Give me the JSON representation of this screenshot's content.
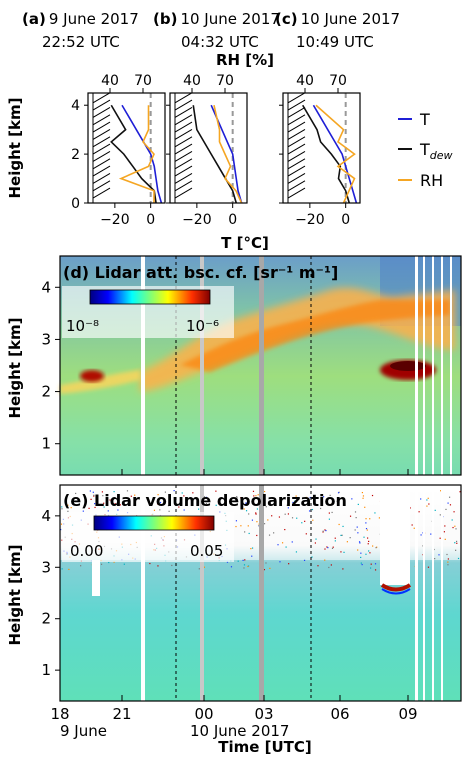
{
  "profiles": {
    "panels": [
      {
        "tag": "(a)",
        "date": "9 June 2017",
        "time": "22:52 UTC"
      },
      {
        "tag": "(b)",
        "date": "10 June 2017",
        "time": "04:32 UTC"
      },
      {
        "tag": "(c)",
        "date": "10 June 2017",
        "time": "10:49 UTC"
      }
    ],
    "ylabel": "Height [km]",
    "xlabel_bottom": "T [°C]",
    "xlabel_top": "RH [%]",
    "bottom_ticks": [
      "−20",
      "0"
    ],
    "top_ticks": [
      "40",
      "70"
    ],
    "y_ticks": [
      "0",
      "2",
      "4"
    ],
    "legend": [
      {
        "label": "T",
        "color": "#1f1fd6"
      },
      {
        "label": "T",
        "sub": "dew",
        "color": "#111111"
      },
      {
        "label": "RH",
        "color": "#f5a623"
      }
    ]
  },
  "lidar": {
    "panel_d_title": "(d) Lidar att. bsc. cf. [sr⁻¹ m⁻¹]",
    "panel_e_title": "(e) Lidar volume depolarization",
    "colorbar_d": {
      "min": "10⁻⁸",
      "max": "10⁻⁶"
    },
    "colorbar_e": {
      "min": "0.00",
      "max": "0.05"
    },
    "ylabel": "Height [km]",
    "y_ticks": [
      "1",
      "2",
      "3",
      "4"
    ],
    "x_ticks": [
      "18",
      "21",
      "00",
      "03",
      "06",
      "09"
    ],
    "date_labels": [
      "9 June",
      "10 June 2017"
    ],
    "xlabel": "Time [UTC]"
  },
  "chart_data": [
    {
      "type": "line",
      "title": "(a) 9 June 2017 22:52 UTC",
      "xlabel": "T [°C]",
      "x2label": "RH [%]",
      "ylabel": "Height [km]",
      "xlim": [
        -35,
        8
      ],
      "ylim": [
        0,
        4.5
      ],
      "series": [
        {
          "name": "T",
          "x": [
            6,
            4,
            3,
            2,
            0,
            -4,
            -8,
            -12,
            -16
          ],
          "y": [
            0,
            0.5,
            1.0,
            1.5,
            2.0,
            2.5,
            3.0,
            3.5,
            4.0
          ]
        },
        {
          "name": "T_dew",
          "x": [
            3,
            2,
            -5,
            -10,
            -15,
            -22,
            -14,
            -22
          ],
          "y": [
            0,
            0.5,
            1.0,
            1.5,
            2.0,
            2.5,
            3.0,
            4.0
          ]
        },
        {
          "name": "RH",
          "x": [
            80,
            80,
            50,
            75,
            80,
            70,
            75,
            75
          ],
          "y": [
            0,
            0.5,
            1.0,
            1.5,
            2.0,
            2.5,
            3.0,
            4.0
          ]
        }
      ]
    },
    {
      "type": "line",
      "title": "(b) 10 June 2017 04:32 UTC",
      "xlabel": "T [°C]",
      "x2label": "RH [%]",
      "ylabel": "Height [km]",
      "xlim": [
        -35,
        8
      ],
      "ylim": [
        0,
        4.5
      ],
      "series": [
        {
          "name": "T",
          "x": [
            5,
            3,
            2,
            1,
            0,
            -3,
            -6,
            -9,
            -12
          ],
          "y": [
            0,
            0.5,
            1.0,
            1.5,
            2.0,
            2.5,
            3.0,
            3.5,
            4.0
          ]
        },
        {
          "name": "T_dew",
          "x": [
            2,
            0,
            -4,
            -8,
            -12,
            -16,
            -20,
            -22
          ],
          "y": [
            0,
            0.5,
            1.0,
            1.5,
            2.0,
            2.5,
            3.0,
            4.0
          ]
        },
        {
          "name": "RH",
          "x": [
            85,
            80,
            70,
            75,
            70,
            65,
            65,
            60
          ],
          "y": [
            0,
            0.5,
            1.0,
            1.5,
            2.0,
            2.5,
            3.0,
            4.0
          ]
        }
      ]
    },
    {
      "type": "line",
      "title": "(c) 10 June 2017 10:49 UTC",
      "xlabel": "T [°C]",
      "x2label": "RH [%]",
      "ylabel": "Height [km]",
      "xlim": [
        -35,
        8
      ],
      "ylim": [
        0,
        4.5
      ],
      "series": [
        {
          "name": "T",
          "x": [
            6,
            4,
            2,
            0,
            -2,
            -6,
            -10,
            -14,
            -18
          ],
          "y": [
            0,
            0.5,
            1.0,
            1.5,
            2.0,
            2.5,
            3.0,
            3.5,
            4.0
          ]
        },
        {
          "name": "T_dew",
          "x": [
            2,
            0,
            -4,
            -3,
            -8,
            -14,
            -16,
            -24
          ],
          "y": [
            0,
            0.5,
            1.0,
            1.5,
            2.0,
            2.5,
            3.0,
            4.0
          ]
        },
        {
          "name": "RH",
          "x": [
            75,
            80,
            85,
            70,
            85,
            70,
            75,
            50
          ],
          "y": [
            0,
            0.5,
            1.0,
            1.5,
            2.0,
            2.5,
            3.0,
            4.0
          ]
        }
      ]
    },
    {
      "type": "heatmap",
      "title": "(d) Lidar att. bsc. cf. [sr⁻¹ m⁻¹]",
      "xlabel": "Time [UTC]",
      "ylabel": "Height [km]",
      "ylim": [
        0.4,
        4.6
      ],
      "x_ticks": [
        "18",
        "21",
        "00",
        "03",
        "06",
        "09"
      ],
      "colorbar": [
        "10⁻⁸",
        "10⁻⁶"
      ],
      "scale": "log"
    },
    {
      "type": "heatmap",
      "title": "(e) Lidar volume depolarization",
      "xlabel": "Time [UTC]",
      "ylabel": "Height [km]",
      "ylim": [
        0.4,
        4.6
      ],
      "x_ticks": [
        "18",
        "21",
        "00",
        "03",
        "06",
        "09"
      ],
      "colorbar": [
        "0.00",
        "0.05"
      ]
    }
  ]
}
